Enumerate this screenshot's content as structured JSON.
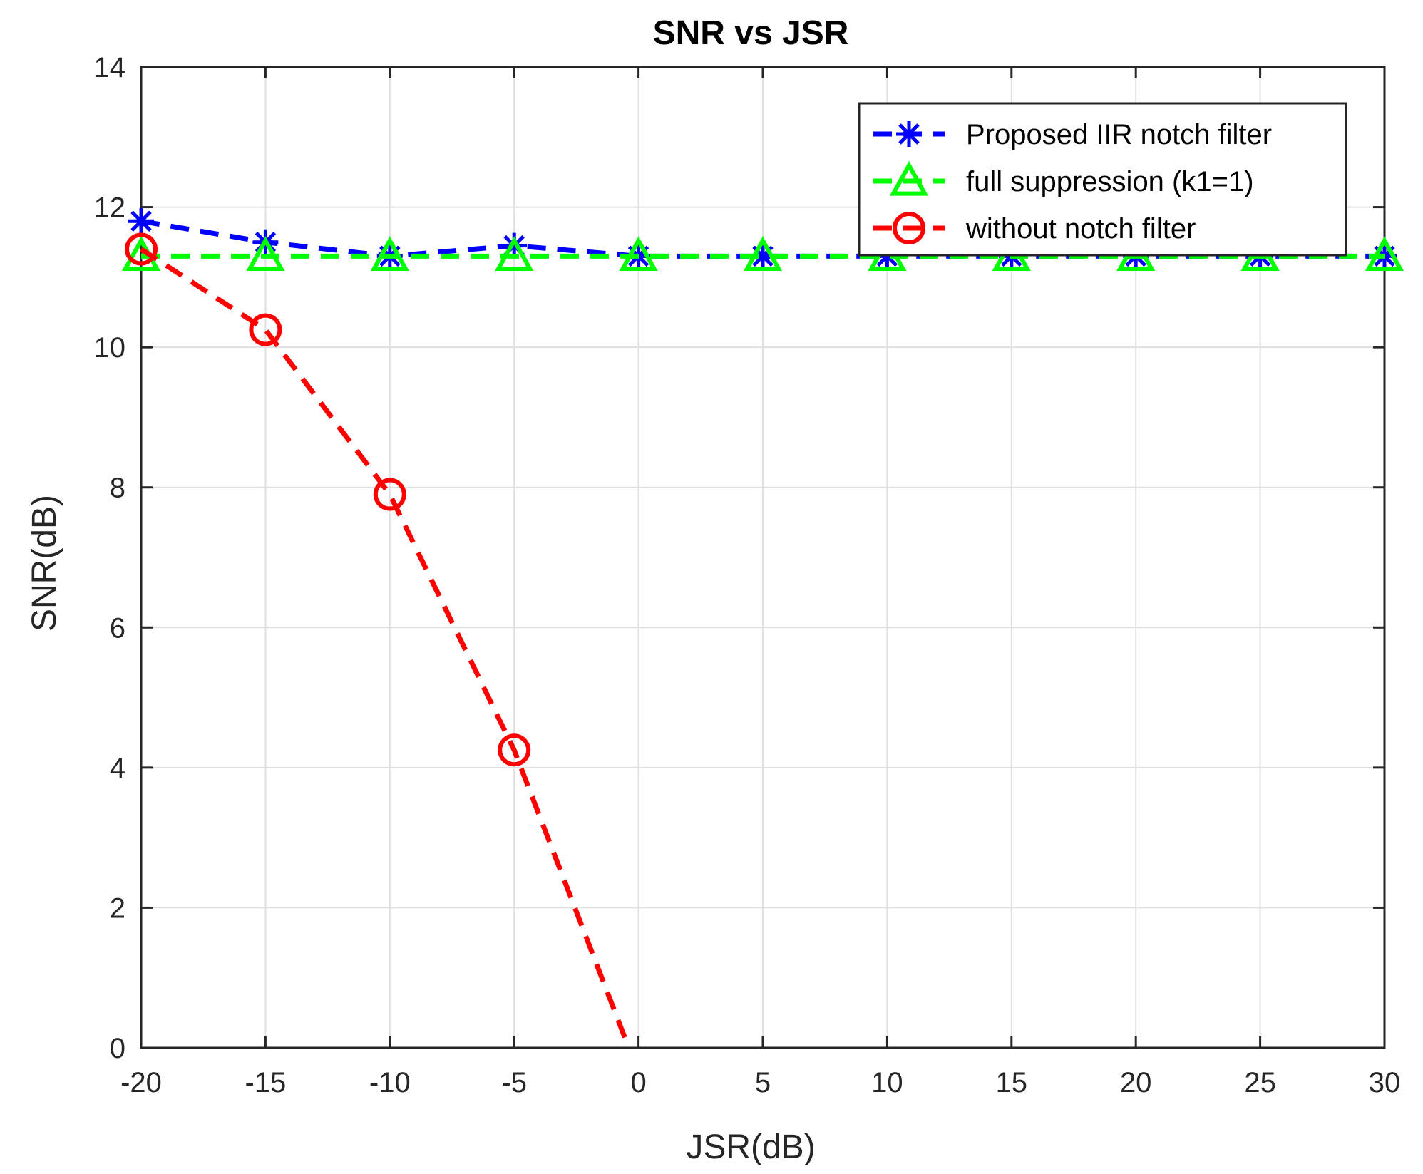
{
  "chart_data": {
    "type": "line",
    "title": "SNR vs JSR",
    "xlabel": "JSR(dB)",
    "ylabel": "SNR(dB)",
    "xlim": [
      -20,
      30
    ],
    "ylim": [
      0,
      14
    ],
    "xticks": [
      -20,
      -15,
      -10,
      -5,
      0,
      5,
      10,
      15,
      20,
      25,
      30
    ],
    "yticks": [
      0,
      2,
      4,
      6,
      8,
      10,
      12,
      14
    ],
    "grid": true,
    "legend_position": "top-right",
    "series": [
      {
        "name": "Proposed IIR notch filter",
        "color": "#0000ff",
        "marker": "asterisk",
        "line_style": "dashed",
        "x": [
          -20,
          -15,
          -10,
          -5,
          0,
          5,
          10,
          15,
          20,
          25,
          30
        ],
        "y": [
          11.8,
          11.5,
          11.3,
          11.45,
          11.3,
          11.3,
          11.3,
          11.3,
          11.3,
          11.3,
          11.3
        ]
      },
      {
        "name": "full suppression (k1=1)",
        "color": "#00ff00",
        "marker": "triangle",
        "line_style": "dashed",
        "x": [
          -20,
          -15,
          -10,
          -5,
          0,
          5,
          10,
          15,
          20,
          25,
          30
        ],
        "y": [
          11.3,
          11.3,
          11.3,
          11.3,
          11.3,
          11.3,
          11.3,
          11.3,
          11.3,
          11.3,
          11.3
        ]
      },
      {
        "name": "without notch filter",
        "color": "#ff0000",
        "marker": "circle",
        "line_style": "dashed",
        "x": [
          -20,
          -15,
          -10,
          -5,
          -0.5
        ],
        "y": [
          11.4,
          10.25,
          7.9,
          4.25,
          0.1
        ],
        "marker_x": [
          -20,
          -15,
          -10,
          -5
        ],
        "marker_y": [
          11.4,
          10.25,
          7.9,
          4.25
        ]
      }
    ]
  }
}
